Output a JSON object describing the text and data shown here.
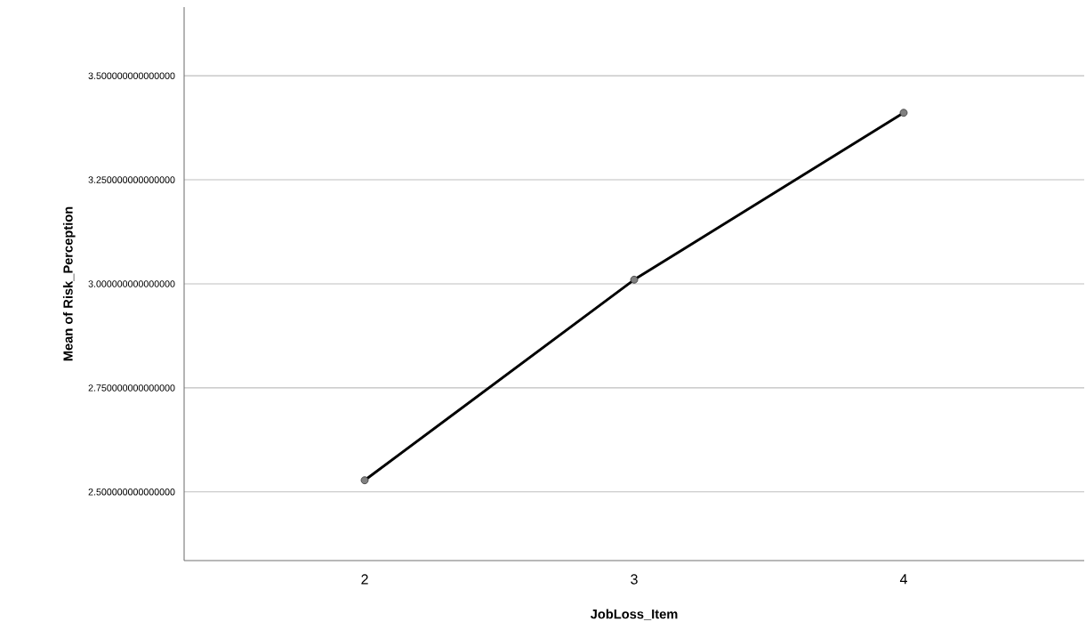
{
  "chart_data": {
    "type": "line",
    "xlabel": "JobLoss_Item",
    "ylabel": "Mean of Risk_Perception",
    "categories": [
      "2",
      "3",
      "4"
    ],
    "series": [
      {
        "color": "#000000",
        "values": [
          2.528,
          3.01,
          3.411
        ]
      }
    ],
    "ylim": [
      2.335,
      3.665
    ],
    "yticks": [
      {
        "value": 2.5,
        "label": "2.500000000000000"
      },
      {
        "value": 2.75,
        "label": "2.750000000000000"
      },
      {
        "value": 3.0,
        "label": "3.000000000000000"
      },
      {
        "value": 3.25,
        "label": "3.250000000000000"
      },
      {
        "value": 3.5,
        "label": "3.500000000000000"
      }
    ],
    "grid": "y",
    "marker": "circle",
    "line_style": "solid"
  }
}
